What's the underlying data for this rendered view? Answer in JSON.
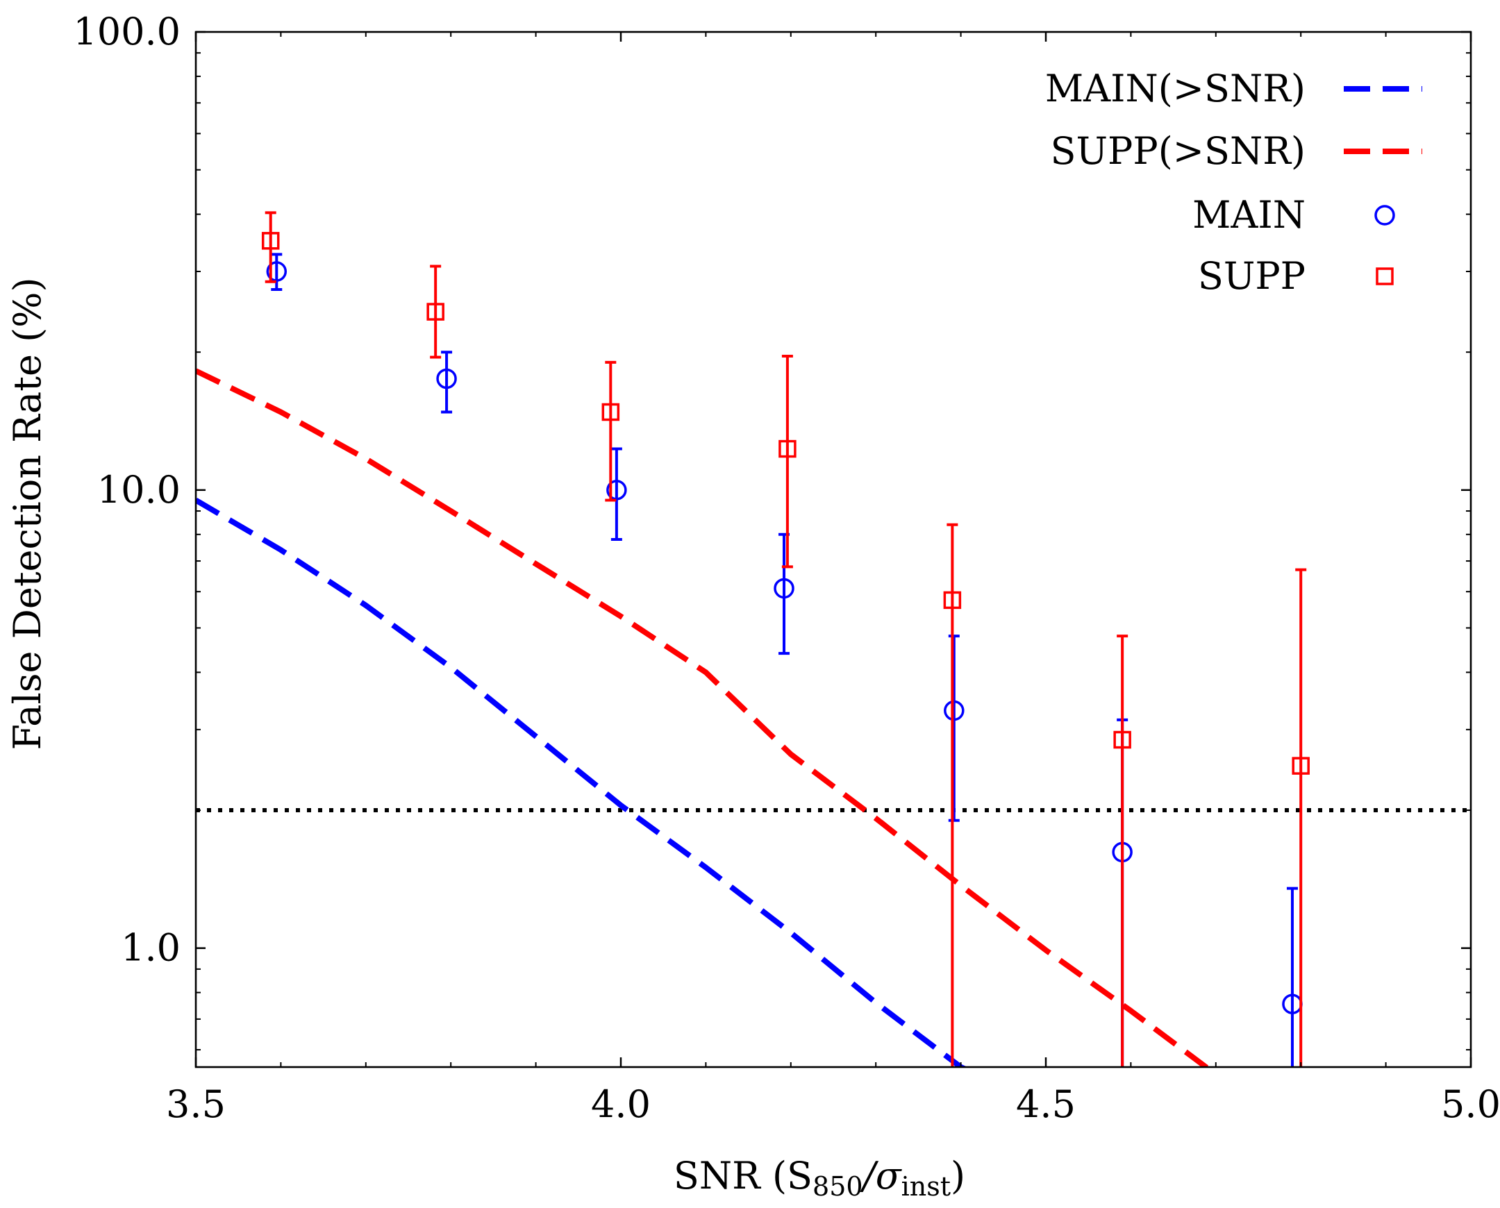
{
  "chart_data": {
    "type": "scatter",
    "title": "",
    "xlabel": "SNR (S850/σinst)",
    "xlabel_parts": {
      "prefix": "SNR (S",
      "sub1": "850",
      "mid": "/σ",
      "sub2": "inst",
      "suffix": ")"
    },
    "ylabel": "False Detection Rate (%)",
    "xlim": [
      3.5,
      5.0
    ],
    "ylim": [
      0.55,
      100.0
    ],
    "yscale": "log",
    "x_ticks": [
      "3.5",
      "4.0",
      "4.5",
      "5.0"
    ],
    "x_tick_values": [
      3.5,
      4.0,
      4.5,
      5.0
    ],
    "y_ticks": [
      "1.0",
      "10.0",
      "100.0"
    ],
    "y_tick_values": [
      1.0,
      10.0,
      100.0
    ],
    "grid": false,
    "legend_position": "top-right",
    "threshold_line": {
      "y": 2.0,
      "style": "dotted",
      "color": "#000000"
    },
    "series": [
      {
        "name": "MAIN(>SNR)",
        "kind": "line",
        "style": "dashed",
        "color": "#0000ff",
        "x": [
          3.5,
          3.6,
          3.7,
          3.8,
          3.9,
          4.0,
          4.1,
          4.2,
          4.3,
          4.4,
          4.41
        ],
        "y": [
          9.5,
          7.4,
          5.6,
          4.1,
          2.9,
          2.05,
          1.5,
          1.08,
          0.76,
          0.55,
          0.54
        ]
      },
      {
        "name": "SUPP(>SNR)",
        "kind": "line",
        "style": "dashed",
        "color": "#ff0000",
        "x": [
          3.5,
          3.6,
          3.7,
          3.8,
          3.9,
          4.0,
          4.1,
          4.2,
          4.3,
          4.4,
          4.5,
          4.6,
          4.7
        ],
        "y": [
          18.2,
          14.8,
          11.7,
          9.0,
          6.9,
          5.3,
          4.0,
          2.65,
          1.92,
          1.37,
          0.99,
          0.73,
          0.53
        ]
      },
      {
        "name": "MAIN",
        "kind": "points",
        "marker": "circle",
        "color": "#0000ff",
        "points": [
          {
            "x": 3.595,
            "y": 30.0,
            "lo": 27.4,
            "hi": 32.7
          },
          {
            "x": 3.795,
            "y": 17.5,
            "lo": 14.8,
            "hi": 20.0
          },
          {
            "x": 3.995,
            "y": 10.0,
            "lo": 7.8,
            "hi": 12.3
          },
          {
            "x": 4.192,
            "y": 6.1,
            "lo": 4.4,
            "hi": 8.0
          },
          {
            "x": 4.392,
            "y": 3.3,
            "lo": 1.9,
            "hi": 4.8
          },
          {
            "x": 4.59,
            "y": 1.62,
            "lo": 0.5,
            "hi": 3.15
          },
          {
            "x": 4.79,
            "y": 0.755,
            "lo": 0.5,
            "hi": 1.35
          }
        ]
      },
      {
        "name": "SUPP",
        "kind": "points",
        "marker": "square",
        "color": "#ff0000",
        "points": [
          {
            "x": 3.588,
            "y": 35.0,
            "lo": 28.5,
            "hi": 40.3
          },
          {
            "x": 3.782,
            "y": 24.5,
            "lo": 19.5,
            "hi": 30.8
          },
          {
            "x": 3.988,
            "y": 14.8,
            "lo": 9.5,
            "hi": 19.0
          },
          {
            "x": 4.196,
            "y": 12.3,
            "lo": 6.8,
            "hi": 19.6
          },
          {
            "x": 4.39,
            "y": 5.75,
            "lo": 0.5,
            "hi": 8.4
          },
          {
            "x": 4.59,
            "y": 2.85,
            "lo": 0.5,
            "hi": 4.8
          },
          {
            "x": 4.8,
            "y": 2.5,
            "lo": 0.5,
            "hi": 6.7
          }
        ]
      }
    ]
  }
}
